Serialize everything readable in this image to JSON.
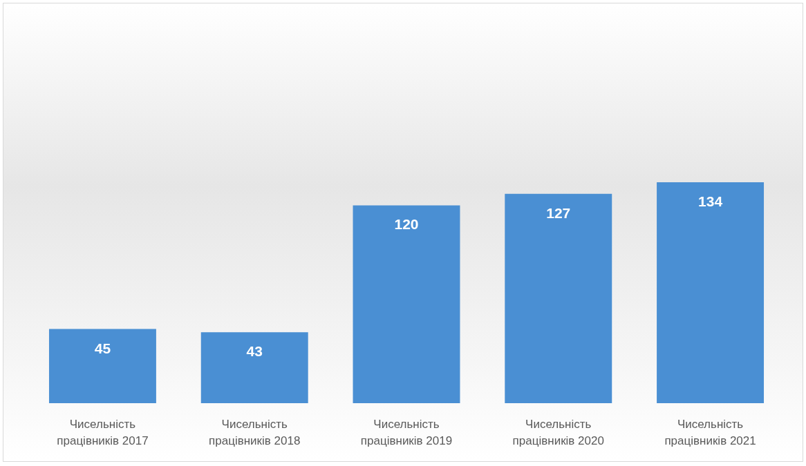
{
  "chart_data": {
    "type": "bar",
    "categories": [
      "Чисельність працівників 2017",
      "Чисельність працівників 2018",
      "Чисельність працівників 2019",
      "Чисельність працівників 2020",
      "Чисельність працівників 2021"
    ],
    "values": [
      45,
      43,
      120,
      127,
      134
    ],
    "color": "#4a8fd3",
    "data_labels": true
  }
}
